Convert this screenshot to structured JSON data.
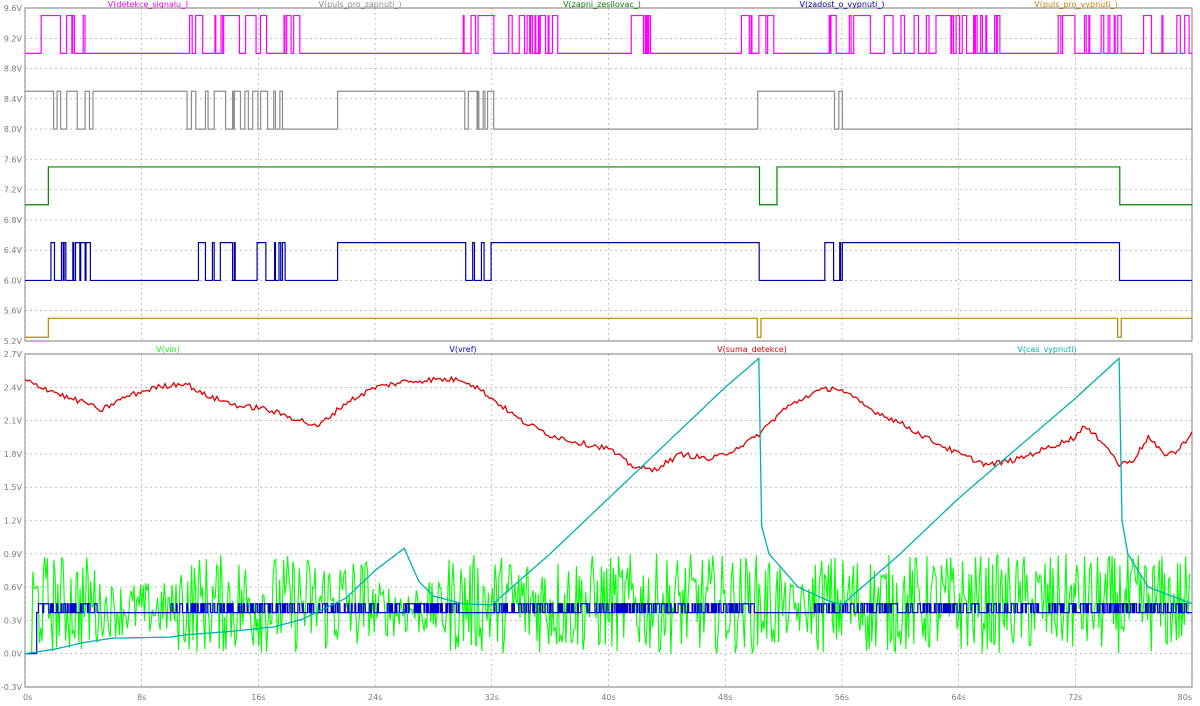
{
  "chart_data": [
    {
      "type": "line",
      "panel": "top",
      "title": "",
      "x_unit": "s",
      "xlim": [
        0,
        80
      ],
      "ylim": [
        5.2,
        9.6
      ],
      "grid": true,
      "y_ticks": [
        "9.6V",
        "9.2V",
        "8.8V",
        "8.4V",
        "8.0V",
        "7.6V",
        "7.2V",
        "6.8V",
        "6.4V",
        "6.0V",
        "5.6V",
        "5.2V"
      ],
      "series": [
        {
          "name": "V(detekce_signalu_)",
          "color": "#ff00ff",
          "type": "digital",
          "low": 9.0,
          "high": 9.5,
          "bursts": [
            [
              0.4,
              4.6
            ],
            [
              10.8,
              18.8
            ],
            [
              30.0,
              36.5
            ],
            [
              41.0,
              43.0
            ],
            [
              49.0,
              51.3
            ],
            [
              54.5,
              66.8
            ],
            [
              70.5,
              76.0
            ],
            [
              76.5,
              79.8
            ]
          ]
        },
        {
          "name": "V(puls_pro_zapnuti_)",
          "color": "#8c8c8c",
          "type": "digital",
          "low": 8.0,
          "high": 8.5,
          "segments": [
            [
              0.0,
              8.5
            ],
            [
              1.6,
              8.0
            ],
            [
              4.6,
              8.5
            ],
            [
              10.8,
              8.0
            ],
            [
              21.4,
              8.5
            ],
            [
              30.0,
              8.0
            ],
            [
              50.2,
              8.5
            ],
            [
              54.8,
              8.0
            ]
          ],
          "bursts": [
            [
              1.6,
              4.6
            ],
            [
              10.8,
              17.8
            ],
            [
              30.0,
              32.1
            ],
            [
              54.8,
              56.0
            ]
          ]
        },
        {
          "name": "V(zapni_zesilovac_)",
          "color": "#008000",
          "type": "digital",
          "low": 7.0,
          "high": 7.5,
          "segments": [
            [
              0.0,
              7.0
            ],
            [
              1.6,
              7.5
            ],
            [
              50.3,
              7.0
            ],
            [
              51.5,
              7.5
            ],
            [
              75.0,
              7.0
            ]
          ]
        },
        {
          "name": "V(zadost_o_vypnuti_)",
          "color": "#0000a8",
          "type": "digital",
          "low": 6.0,
          "high": 6.5,
          "segments": [
            [
              0.0,
              6.0
            ],
            [
              1.6,
              6.5
            ],
            [
              4.6,
              6.0
            ],
            [
              10.8,
              6.5
            ],
            [
              17.8,
              6.0
            ],
            [
              21.4,
              6.5
            ],
            [
              30.0,
              6.0
            ],
            [
              32.1,
              6.5
            ],
            [
              50.3,
              6.0
            ],
            [
              54.8,
              6.5
            ],
            [
              56.0,
              6.0
            ],
            [
              56.0,
              6.5
            ],
            [
              75.0,
              6.0
            ]
          ],
          "bursts": [
            [
              1.6,
              4.6
            ],
            [
              10.8,
              17.8
            ],
            [
              30.0,
              32.1
            ],
            [
              54.8,
              56.0
            ]
          ]
        },
        {
          "name": "V(puls_pro_vypnuti_)",
          "color": "#b8860b",
          "type": "digital",
          "low": 5.25,
          "high": 5.5,
          "segments": [
            [
              0.0,
              5.25
            ],
            [
              1.6,
              5.5
            ]
          ],
          "dips": [
            50.3,
            75.0
          ]
        }
      ]
    },
    {
      "type": "line",
      "panel": "bottom",
      "title": "",
      "x_unit": "s",
      "xlim": [
        0,
        80
      ],
      "ylim": [
        -0.3,
        2.7
      ],
      "grid": true,
      "x_ticks": [
        "0s",
        "8s",
        "16s",
        "24s",
        "32s",
        "40s",
        "48s",
        "56s",
        "64s",
        "72s",
        "80s"
      ],
      "y_ticks": [
        "2.7V",
        "2.4V",
        "2.1V",
        "1.8V",
        "1.5V",
        "1.2V",
        "0.9V",
        "0.6V",
        "0.3V",
        "0.0V",
        "-0.3V"
      ],
      "series": [
        {
          "name": "V(vin)",
          "color": "#00ff00",
          "type": "noise",
          "center": 0.45,
          "amplitude": 0.45,
          "flat_segments": [
            [
              5.0,
              10.5,
              0.4
            ],
            [
              23.5,
              28.5,
              0.4
            ],
            [
              52.0,
              54.0,
              0.4
            ]
          ]
        },
        {
          "name": "V(vref)",
          "color": "#0000cc",
          "type": "digital",
          "low": 0.37,
          "high": 0.45,
          "segments": [
            [
              0.0,
              0.0
            ],
            [
              0.8,
              0.37
            ]
          ],
          "pulse_ranges": [
            [
              0.8,
              5.0
            ],
            [
              10.0,
              30.0
            ],
            [
              32.0,
              50.0
            ],
            [
              54.0,
              80.0
            ]
          ]
        },
        {
          "name": "V(suma_detekce)",
          "color": "#e00000",
          "type": "curve",
          "points": [
            [
              0,
              2.46
            ],
            [
              2,
              2.36
            ],
            [
              3,
              2.3
            ],
            [
              4.5,
              2.25
            ],
            [
              5,
              2.18
            ],
            [
              7,
              2.32
            ],
            [
              9,
              2.4
            ],
            [
              10.5,
              2.43
            ],
            [
              11,
              2.44
            ],
            [
              12,
              2.35
            ],
            [
              13,
              2.3
            ],
            [
              15,
              2.22
            ],
            [
              16,
              2.22
            ],
            [
              18,
              2.14
            ],
            [
              19,
              2.1
            ],
            [
              20,
              2.04
            ],
            [
              22,
              2.26
            ],
            [
              24,
              2.4
            ],
            [
              26,
              2.45
            ],
            [
              28,
              2.47
            ],
            [
              30,
              2.47
            ],
            [
              31,
              2.4
            ],
            [
              32,
              2.3
            ],
            [
              34,
              2.1
            ],
            [
              36,
              1.97
            ],
            [
              38,
              1.9
            ],
            [
              40,
              1.85
            ],
            [
              41.5,
              1.7
            ],
            [
              43,
              1.65
            ],
            [
              45,
              1.8
            ],
            [
              47,
              1.75
            ],
            [
              48,
              1.8
            ],
            [
              50,
              1.94
            ],
            [
              52,
              2.2
            ],
            [
              54,
              2.35
            ],
            [
              55.5,
              2.4
            ],
            [
              56,
              2.37
            ],
            [
              58,
              2.2
            ],
            [
              60,
              2.08
            ],
            [
              62,
              1.93
            ],
            [
              64,
              1.8
            ],
            [
              65,
              1.75
            ],
            [
              66,
              1.7
            ],
            [
              68,
              1.75
            ],
            [
              70,
              1.85
            ],
            [
              72,
              1.95
            ],
            [
              72.5,
              2.05
            ],
            [
              74,
              1.9
            ],
            [
              75,
              1.7
            ],
            [
              76,
              1.75
            ],
            [
              77,
              1.95
            ],
            [
              78,
              1.8
            ],
            [
              79,
              1.82
            ],
            [
              80,
              2.0
            ]
          ]
        },
        {
          "name": "V(cas_vypnuti)",
          "color": "#00b0b0",
          "type": "curve",
          "points": [
            [
              0,
              0.0
            ],
            [
              2,
              0.04
            ],
            [
              4,
              0.1
            ],
            [
              6,
              0.14
            ],
            [
              10,
              0.15
            ],
            [
              11,
              0.17
            ],
            [
              14,
              0.2
            ],
            [
              17,
              0.24
            ],
            [
              19,
              0.31
            ],
            [
              22,
              0.5
            ],
            [
              24,
              0.75
            ],
            [
              26,
              0.95
            ],
            [
              27,
              0.65
            ],
            [
              28,
              0.52
            ],
            [
              30,
              0.45
            ],
            [
              32,
              0.44
            ],
            [
              36,
              0.9
            ],
            [
              40,
              1.4
            ],
            [
              44,
              1.9
            ],
            [
              48,
              2.4
            ],
            [
              50.3,
              2.66
            ],
            [
              50.5,
              1.15
            ],
            [
              51,
              0.9
            ],
            [
              53,
              0.6
            ],
            [
              55,
              0.48
            ],
            [
              56,
              0.44
            ],
            [
              60,
              0.9
            ],
            [
              64,
              1.4
            ],
            [
              68,
              1.85
            ],
            [
              72,
              2.3
            ],
            [
              75,
              2.66
            ],
            [
              75.2,
              1.2
            ],
            [
              75.6,
              0.9
            ],
            [
              77,
              0.6
            ],
            [
              80,
              0.45
            ]
          ]
        }
      ]
    }
  ]
}
